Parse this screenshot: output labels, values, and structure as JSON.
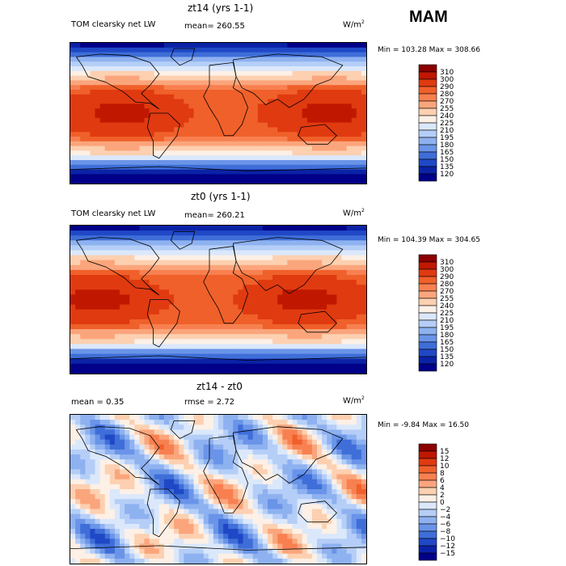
{
  "season": "MAM",
  "chart_data": [
    {
      "type": "heatmap",
      "title": "zt14 (yrs 1-1)",
      "field_label": "TOM clearsky net LW",
      "mean_text": "mean= 260.55",
      "units": "W/m",
      "units_exp": "2",
      "stats_text": "Min = 103.28 Max = 308.66",
      "min": 103.28,
      "max": 308.66,
      "mean": 260.55,
      "levels": [
        "310",
        "300",
        "290",
        "280",
        "270",
        "255",
        "240",
        "225",
        "210",
        "195",
        "180",
        "165",
        "150",
        "135",
        "120"
      ],
      "colors": [
        "#8b0000",
        "#c01800",
        "#e03a10",
        "#f0602a",
        "#f88050",
        "#fba57c",
        "#fcd0b0",
        "#fdf0e6",
        "#dbe8fb",
        "#b5cef7",
        "#8eb1f0",
        "#6a94e8",
        "#3f6ed8",
        "#1f48c6",
        "#0b22a6",
        "#000088"
      ],
      "xlabel": "",
      "ylabel": ""
    },
    {
      "type": "heatmap",
      "title": "zt0 (yrs 1-1)",
      "field_label": "TOM clearsky net LW",
      "mean_text": "mean= 260.21",
      "units": "W/m",
      "units_exp": "2",
      "stats_text": "Min = 104.39 Max = 304.65",
      "min": 104.39,
      "max": 304.65,
      "mean": 260.21,
      "levels": [
        "310",
        "300",
        "290",
        "280",
        "270",
        "255",
        "240",
        "225",
        "210",
        "195",
        "180",
        "165",
        "150",
        "135",
        "120"
      ],
      "colors": [
        "#8b0000",
        "#c01800",
        "#e03a10",
        "#f0602a",
        "#f88050",
        "#fba57c",
        "#fcd0b0",
        "#fdf0e6",
        "#dbe8fb",
        "#b5cef7",
        "#8eb1f0",
        "#6a94e8",
        "#3f6ed8",
        "#1f48c6",
        "#0b22a6",
        "#000088"
      ],
      "xlabel": "",
      "ylabel": ""
    },
    {
      "type": "heatmap",
      "title": "zt14 - zt0",
      "mean_text": "mean =    0.35",
      "rmse_text": "rmse =    2.72",
      "units": "W/m",
      "units_exp": "2",
      "stats_text": "Min = -9.84 Max = 16.50",
      "min": -9.84,
      "max": 16.5,
      "mean": 0.35,
      "rmse": 2.72,
      "levels": [
        "15",
        "12",
        "10",
        "8",
        "6",
        "4",
        "2",
        "0",
        "−2",
        "−4",
        "−6",
        "−8",
        "−10",
        "−12",
        "−15"
      ],
      "colors": [
        "#8b0000",
        "#c01800",
        "#e03a10",
        "#f0602a",
        "#f88050",
        "#fba57c",
        "#fcd0b0",
        "#fdf0e6",
        "#dbe8fb",
        "#b5cef7",
        "#8eb1f0",
        "#6a94e8",
        "#3f6ed8",
        "#1f48c6",
        "#0b22a6",
        "#000088"
      ],
      "xlabel": "",
      "ylabel": ""
    }
  ]
}
